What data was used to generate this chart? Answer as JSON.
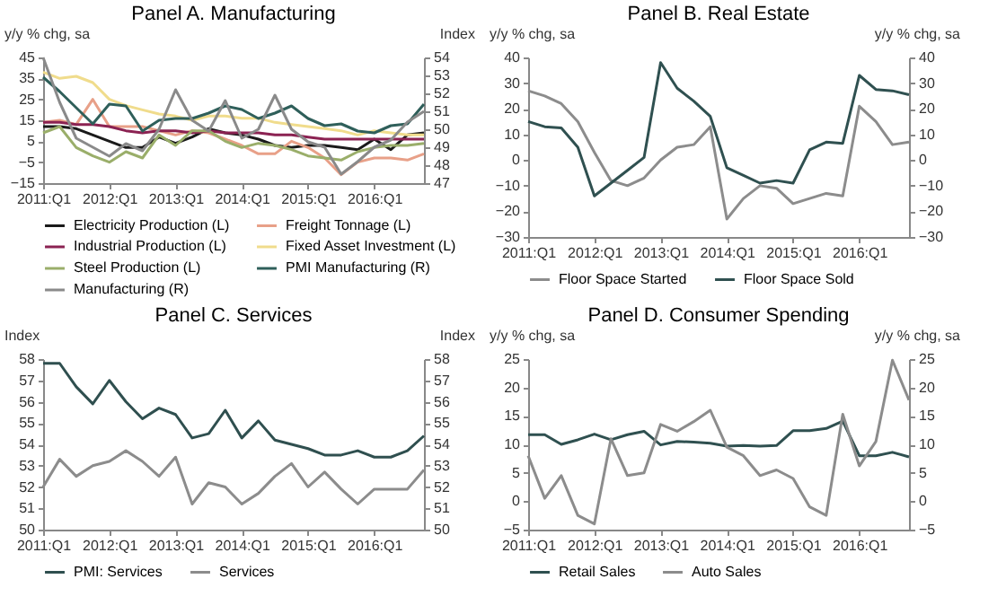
{
  "chart_data": [
    {
      "type": "line",
      "title": "Panel A. Manufacturing",
      "ylabel": "y/y % chg, sa",
      "y2label": "Index",
      "categories": [
        "2011:Q1",
        null,
        null,
        null,
        "2012:Q1",
        null,
        null,
        null,
        "2013:Q1",
        null,
        null,
        null,
        "2014:Q1",
        null,
        null,
        null,
        "2015:Q1",
        null,
        null,
        null,
        "2016:Q1",
        null,
        null,
        null
      ],
      "ylim": [
        -15,
        45
      ],
      "yticks": [
        -15,
        -5,
        5,
        15,
        25,
        35,
        45
      ],
      "y2lim": [
        47,
        54
      ],
      "y2ticks": [
        47,
        48,
        49,
        50,
        51,
        52,
        53,
        54
      ],
      "legend": "bottom",
      "grid": false,
      "series": [
        {
          "name": "Electricity Production (L)",
          "color": "#1a1a1a",
          "values": [
            12,
            12,
            11,
            8,
            5,
            2,
            2,
            7,
            4,
            7,
            11,
            9,
            8,
            6,
            3,
            2,
            3,
            3,
            2,
            1,
            6,
            1,
            8,
            9
          ]
        },
        {
          "name": "Freight Tonnage (L)",
          "color": "#e8a088",
          "values": [
            14,
            15,
            13,
            25,
            12,
            12,
            12,
            10,
            8,
            10,
            9,
            6,
            3,
            -1,
            -1,
            5,
            2,
            -3,
            -11,
            -5,
            -3,
            -3,
            -4,
            -1
          ]
        },
        {
          "name": "Industrial Production (L)",
          "color": "#8b2252",
          "values": [
            14,
            14,
            13,
            13,
            12,
            10,
            9,
            10,
            10,
            9,
            10,
            9,
            9,
            9,
            8,
            8,
            7,
            6,
            6,
            6,
            6,
            6,
            6,
            6
          ]
        },
        {
          "name": "Fixed Asset Investment (L)",
          "color": "#f0dc8c",
          "values": [
            38,
            35,
            36,
            33,
            25,
            22,
            20,
            18,
            17,
            15,
            17,
            17,
            16,
            16,
            14,
            13,
            12,
            11,
            10,
            8,
            10,
            9,
            8,
            8
          ]
        },
        {
          "name": "Steel Production (L)",
          "color": "#9aae6a",
          "values": [
            9,
            12,
            2,
            -2,
            -5,
            0,
            -3,
            8,
            3,
            10,
            10,
            5,
            2,
            4,
            3,
            1,
            -2,
            -3,
            -4,
            0,
            2,
            3,
            3,
            4
          ]
        },
        {
          "name": "PMI Manufacturing (R)",
          "color": "#2f5f5a",
          "axis": "y2",
          "values": [
            52.9,
            52.1,
            51.2,
            50.3,
            51.4,
            51.3,
            49.9,
            50.5,
            50.6,
            50.6,
            50.9,
            51.3,
            51.1,
            50.6,
            50.9,
            51.3,
            50.6,
            50.2,
            50.3,
            49.9,
            49.8,
            50.2,
            50.3,
            51.4
          ]
        },
        {
          "name": "Manufacturing (R)",
          "color": "#8a8a8a",
          "axis": "y2",
          "values": [
            54.0,
            51.5,
            49.5,
            49.0,
            48.5,
            49.2,
            48.8,
            50.0,
            52.2,
            50.5,
            49.9,
            51.6,
            49.5,
            50.0,
            51.9,
            50.0,
            49.3,
            49.0,
            47.5,
            48.2,
            49.0,
            49.4,
            50.4,
            51.0
          ]
        }
      ]
    },
    {
      "type": "line",
      "title": "Panel B. Real Estate",
      "ylabel": "y/y % chg, sa",
      "y2label": "y/y % chg, sa",
      "categories": [
        "2011:Q1",
        null,
        null,
        null,
        "2012:Q1",
        null,
        null,
        null,
        "2013:Q1",
        null,
        null,
        null,
        "2014:Q1",
        null,
        null,
        null,
        "2015:Q1",
        null,
        null,
        null,
        "2016:Q1",
        null,
        null,
        null
      ],
      "ylim": [
        -30,
        40
      ],
      "yticks": [
        -30,
        -20,
        -10,
        0,
        10,
        20,
        30,
        40
      ],
      "y2lim": [
        -30,
        40
      ],
      "y2ticks": [
        -30,
        -20,
        -10,
        0,
        10,
        20,
        30,
        40
      ],
      "legend": "bottom",
      "grid": false,
      "series": [
        {
          "name": "Floor Space Started",
          "color": "#8c8c8c",
          "values": [
            27,
            25,
            22,
            15,
            3,
            -8,
            -10,
            -7,
            0,
            5,
            6,
            13,
            -23,
            -15,
            -10,
            -11,
            -17,
            -15,
            -13,
            -14,
            21,
            15,
            6,
            7
          ]
        },
        {
          "name": "Floor Space Sold",
          "color": "#2f5050",
          "values": [
            15,
            13,
            12.5,
            5,
            -14,
            -9,
            -4,
            1,
            38,
            28,
            23,
            17,
            -3,
            -6,
            -9,
            -8,
            -9,
            4,
            7,
            6.5,
            33,
            27.5,
            27,
            25.5
          ]
        }
      ]
    },
    {
      "type": "line",
      "title": "Panel C. Services",
      "ylabel": "Index",
      "y2label": "Index",
      "categories": [
        "2011:Q1",
        null,
        null,
        null,
        "2012:Q1",
        null,
        null,
        null,
        "2013:Q1",
        null,
        null,
        null,
        "2014:Q1",
        null,
        null,
        null,
        "2015:Q1",
        null,
        null,
        null,
        "2016:Q1",
        null,
        null,
        null
      ],
      "ylim": [
        50,
        58
      ],
      "yticks": [
        50,
        51,
        52,
        53,
        54,
        55,
        56,
        57,
        58
      ],
      "y2lim": [
        50,
        58
      ],
      "y2ticks": [
        50,
        51,
        52,
        53,
        54,
        55,
        56,
        57,
        58
      ],
      "legend": "bottom",
      "grid": false,
      "series": [
        {
          "name": "PMI: Services",
          "color": "#2f4f4f",
          "values": [
            57.8,
            57.8,
            56.7,
            55.9,
            57.0,
            56.0,
            55.2,
            55.7,
            55.4,
            54.3,
            54.5,
            55.6,
            54.3,
            55.1,
            54.2,
            54.0,
            53.8,
            53.5,
            53.5,
            53.7,
            53.4,
            53.4,
            53.7,
            54.4
          ]
        },
        {
          "name": "Services",
          "color": "#8c8c8c",
          "values": [
            52.0,
            53.3,
            52.5,
            53.0,
            53.2,
            53.7,
            53.2,
            52.5,
            53.4,
            51.2,
            52.2,
            52.0,
            51.2,
            51.7,
            52.5,
            53.1,
            52.0,
            52.7,
            51.9,
            51.2,
            51.9,
            51.9,
            51.9,
            52.8
          ]
        }
      ]
    },
    {
      "type": "line",
      "title": "Panel D. Consumer Spending",
      "ylabel": "y/y % chg, sa",
      "y2label": "y/y % chg, sa",
      "categories": [
        "2011:Q1",
        null,
        null,
        null,
        "2012:Q1",
        null,
        null,
        null,
        "2013:Q1",
        null,
        null,
        null,
        "2014:Q1",
        null,
        null,
        null,
        "2015:Q1",
        null,
        null,
        null,
        "2016:Q1",
        null,
        null,
        null
      ],
      "ylim": [
        -5,
        25
      ],
      "yticks": [
        -5,
        0,
        5,
        10,
        15,
        20,
        25
      ],
      "y2lim": [
        -5,
        25
      ],
      "y2ticks": [
        -5,
        0,
        5,
        10,
        15,
        20,
        25
      ],
      "legend": "bottom",
      "grid": false,
      "series": [
        {
          "name": "Retail Sales",
          "color": "#2f5050",
          "values": [
            11.7,
            11.7,
            10,
            10.8,
            11.8,
            10.8,
            11.7,
            12.3,
            9.9,
            10.5,
            10.4,
            10.2,
            9.7,
            9.8,
            9.7,
            9.8,
            12.4,
            12.4,
            12.8,
            14.1,
            8.0,
            8.0,
            8.6,
            7.8
          ]
        },
        {
          "name": "Auto Sales",
          "color": "#8c8c8c",
          "values": [
            8,
            0.5,
            4.5,
            -2.5,
            -4,
            11,
            4.5,
            5,
            13.5,
            12.3,
            14,
            16,
            9.5,
            8,
            4.5,
            5.5,
            4,
            -1,
            -2.5,
            15.3,
            6.2,
            10.5,
            24.8,
            17.8
          ]
        }
      ]
    }
  ]
}
